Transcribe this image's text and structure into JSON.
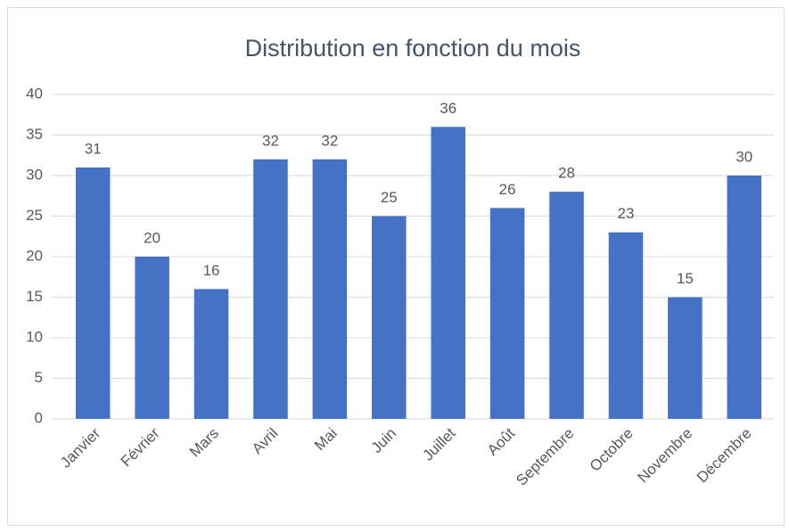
{
  "chart_data": {
    "type": "bar",
    "title": "Distribution en fonction du mois",
    "categories": [
      "Janvier",
      "Février",
      "Mars",
      "Avril",
      "Mai",
      "Juin",
      "Juillet",
      "Août",
      "Septembre",
      "Octobre",
      "Novembre",
      "Décembre"
    ],
    "values": [
      31,
      20,
      16,
      32,
      32,
      25,
      36,
      26,
      28,
      23,
      15,
      30
    ],
    "color": "#4472c4",
    "ylim": [
      0,
      40
    ],
    "yticks": [
      0,
      5,
      10,
      15,
      20,
      25,
      30,
      35,
      40
    ],
    "grid": true,
    "data_labels": true
  }
}
